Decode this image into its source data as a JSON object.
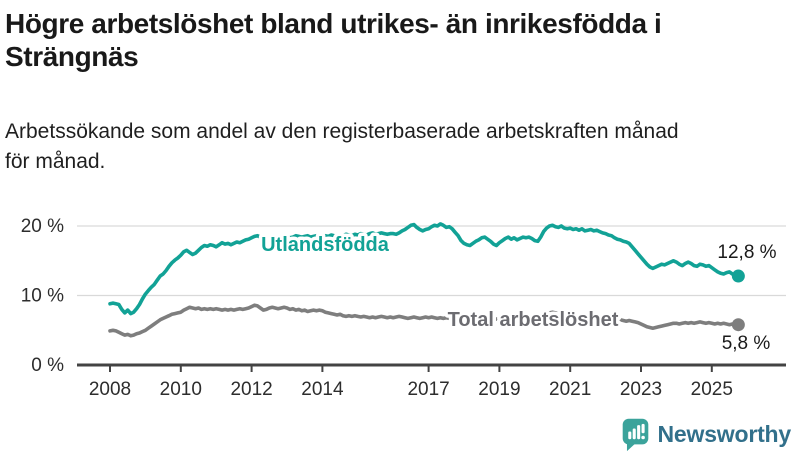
{
  "header": {
    "title": "Högre arbetslöshet bland utrikes- än inrikesfödda i Strängnäs",
    "subtitle": "Arbetssökande som andel av den registerbaserade arbetskraften månad för månad."
  },
  "chart_data": {
    "type": "line",
    "title": "Högre arbetslöshet bland utrikes- än inrikesfödda i Strängnäs",
    "subtitle": "Arbetssökande som andel av den registerbaserade arbetskraften månad för månad.",
    "x_unit": "year-month",
    "x_start_year": 2008,
    "x_step_months": 1,
    "x_tick_years": [
      2008,
      2010,
      2012,
      2014,
      2017,
      2019,
      2021,
      2023,
      2025
    ],
    "x_tick_labels": [
      "2008",
      "2010",
      "2012",
      "2014",
      "2017",
      "2019",
      "2021",
      "2023",
      "2025"
    ],
    "y_ticks": [
      0,
      10,
      20
    ],
    "y_tick_labels": [
      "0 %",
      "10 %",
      "20 %"
    ],
    "ylim": [
      0,
      21.5
    ],
    "grid": "horizontal",
    "legend_position": "inline-labels",
    "colors": {
      "grid": "#d9d9d9",
      "axis": "#434343",
      "tick_text": "#2d2d2d",
      "end_label_text": "#1a1a1a"
    },
    "series": [
      {
        "name": "Utlandsfödda",
        "color": "#12a296",
        "label_color": "#12a296",
        "end_label": "12,8 %",
        "last_value": 12.8,
        "values": [
          8.8,
          8.9,
          8.8,
          8.7,
          8.0,
          7.5,
          7.9,
          7.4,
          7.6,
          8.1,
          8.7,
          9.5,
          10.2,
          10.7,
          11.2,
          11.6,
          12.2,
          12.8,
          13.1,
          13.6,
          14.2,
          14.7,
          15.1,
          15.4,
          15.8,
          16.3,
          16.5,
          16.2,
          15.9,
          16.1,
          16.5,
          16.9,
          17.2,
          17.1,
          17.3,
          17.2,
          17.0,
          17.3,
          17.6,
          17.4,
          17.5,
          17.3,
          17.5,
          17.7,
          17.6,
          17.8,
          18.0,
          18.1,
          18.3,
          18.5,
          18.6,
          18.4,
          18.2,
          18.4,
          18.3,
          18.5,
          18.4,
          18.3,
          18.5,
          18.4,
          18.5,
          18.3,
          18.4,
          18.6,
          18.5,
          18.4,
          18.5,
          18.6,
          18.4,
          18.5,
          18.6,
          18.5,
          18.4,
          18.6,
          18.5,
          18.7,
          18.6,
          18.5,
          18.7,
          18.6,
          18.8,
          18.7,
          18.6,
          18.8,
          18.7,
          18.9,
          18.8,
          18.7,
          18.9,
          19.0,
          18.8,
          18.9,
          19.0,
          18.9,
          18.8,
          18.9,
          18.9,
          18.8,
          19.0,
          19.3,
          19.5,
          19.8,
          20.1,
          20.2,
          19.8,
          19.5,
          19.3,
          19.5,
          19.6,
          19.9,
          20.1,
          20.0,
          20.3,
          20.1,
          19.8,
          19.9,
          19.6,
          19.1,
          18.6,
          17.9,
          17.5,
          17.3,
          17.2,
          17.5,
          17.8,
          18.0,
          18.3,
          18.4,
          18.1,
          17.8,
          17.4,
          17.2,
          17.6,
          17.9,
          18.2,
          18.4,
          18.1,
          18.3,
          18.0,
          18.2,
          18.4,
          18.3,
          18.4,
          18.2,
          17.9,
          17.8,
          18.4,
          19.2,
          19.7,
          20.0,
          20.1,
          19.9,
          19.8,
          20.0,
          19.7,
          19.6,
          19.7,
          19.5,
          19.6,
          19.4,
          19.6,
          19.3,
          19.4,
          19.5,
          19.3,
          19.4,
          19.2,
          19.0,
          18.9,
          18.7,
          18.6,
          18.3,
          18.1,
          18.0,
          17.8,
          17.7,
          17.5,
          17.0,
          16.5,
          16.0,
          15.5,
          15.0,
          14.5,
          14.1,
          13.9,
          14.1,
          14.3,
          14.5,
          14.4,
          14.6,
          14.8,
          15.0,
          14.8,
          14.5,
          14.3,
          14.6,
          14.8,
          14.6,
          14.3,
          14.2,
          14.5,
          14.4,
          14.2,
          14.3,
          14.0,
          13.7,
          13.4,
          13.2,
          13.1,
          13.3,
          13.4,
          13.1,
          12.9,
          12.8
        ]
      },
      {
        "name": "Total arbetslöshet",
        "color": "#7e7e7e",
        "label_color": "#6c6c71",
        "end_label": "5,8 %",
        "last_value": 5.8,
        "values": [
          4.9,
          5.0,
          4.9,
          4.7,
          4.5,
          4.3,
          4.4,
          4.2,
          4.3,
          4.5,
          4.6,
          4.8,
          5.0,
          5.3,
          5.6,
          5.9,
          6.2,
          6.5,
          6.7,
          6.9,
          7.1,
          7.3,
          7.4,
          7.5,
          7.6,
          7.9,
          8.1,
          8.3,
          8.2,
          8.1,
          8.2,
          8.0,
          8.1,
          8.0,
          8.1,
          8.0,
          8.1,
          8.0,
          7.9,
          8.0,
          7.9,
          8.0,
          7.9,
          8.0,
          8.1,
          8.0,
          8.1,
          8.2,
          8.4,
          8.6,
          8.5,
          8.2,
          7.9,
          8.0,
          8.2,
          8.3,
          8.2,
          8.1,
          8.2,
          8.3,
          8.2,
          8.0,
          8.1,
          7.9,
          8.0,
          7.8,
          7.9,
          7.7,
          7.8,
          7.9,
          7.8,
          7.9,
          7.8,
          7.6,
          7.5,
          7.4,
          7.3,
          7.2,
          7.3,
          7.1,
          7.0,
          7.1,
          7.0,
          7.1,
          7.0,
          6.9,
          7.0,
          6.9,
          6.8,
          6.9,
          6.8,
          6.9,
          7.0,
          6.9,
          6.8,
          6.9,
          6.8,
          6.9,
          7.0,
          6.9,
          6.8,
          6.7,
          6.8,
          6.9,
          6.8,
          6.7,
          6.8,
          6.9,
          6.8,
          6.9,
          6.8,
          6.7,
          6.8,
          6.7,
          6.8,
          6.7,
          6.8,
          6.7,
          6.6,
          6.7,
          6.7,
          6.6,
          6.7,
          6.6,
          6.7,
          6.6,
          6.5,
          6.6,
          6.7,
          6.6,
          6.7,
          6.6,
          6.6,
          6.7,
          6.6,
          6.5,
          6.6,
          6.5,
          6.6,
          6.7,
          6.6,
          6.7,
          6.6,
          6.7,
          6.7,
          6.6,
          6.9,
          7.2,
          7.4,
          7.5,
          7.6,
          7.5,
          7.4,
          7.5,
          7.4,
          7.3,
          7.4,
          7.3,
          7.2,
          7.1,
          7.0,
          6.9,
          7.0,
          6.9,
          6.8,
          6.9,
          6.8,
          6.7,
          6.6,
          6.5,
          6.6,
          6.5,
          6.4,
          6.5,
          6.4,
          6.3,
          6.4,
          6.3,
          6.2,
          6.1,
          5.9,
          5.7,
          5.5,
          5.4,
          5.3,
          5.4,
          5.5,
          5.6,
          5.7,
          5.8,
          5.9,
          6.0,
          6.0,
          5.9,
          6.0,
          6.1,
          6.0,
          6.1,
          6.0,
          6.1,
          6.2,
          6.1,
          6.0,
          6.1,
          6.0,
          5.9,
          6.0,
          5.9,
          6.0,
          5.9,
          5.8,
          5.9,
          5.8,
          5.8
        ]
      }
    ]
  },
  "footer": {
    "brand": "Newsworthy",
    "brand_color": "#32708b",
    "icon_color": "#3ba39b",
    "icon": "newsworthy-bar-chart-bubble-icon"
  }
}
